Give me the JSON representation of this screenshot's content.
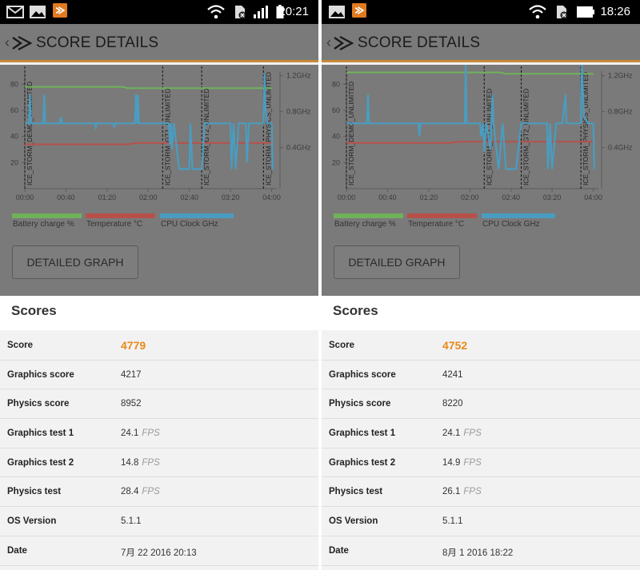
{
  "screens": [
    {
      "status": {
        "time": "20:21"
      },
      "header": {
        "title": "SCORE DETAILS"
      },
      "chart_data": {
        "type": "line",
        "x_ticks": [
          "00:00",
          "00:40",
          "01:20",
          "02:00",
          "02:40",
          "03:20",
          "04:00"
        ],
        "y_ticks": [
          "80",
          "60",
          "40",
          "20"
        ],
        "y2_ticks": [
          "1.2GHz",
          "0.8GHz",
          "0.4GHz"
        ],
        "phase_labels": [
          "ICE_STORM_DEMO_UNLIMITED",
          "ICE_STORM_GT1_UNLIMITED",
          "ICE_STORM_GT2_UNLIMITED",
          "ICE_STORM_PHYSICS_UNLIMITED"
        ],
        "phases_minutes": [
          0,
          134,
          172,
          232
        ],
        "series": [
          {
            "name": "Battery charge %",
            "color": "#6fb25a",
            "points": [
              [
                0,
                78
              ],
              [
                95,
                78
              ],
              [
                100,
                77
              ],
              [
                240,
                77
              ]
            ]
          },
          {
            "name": "Temperature °C",
            "color": "#b8504a",
            "points": [
              [
                0,
                34
              ],
              [
                100,
                34
              ],
              [
                110,
                35
              ],
              [
                240,
                35
              ]
            ]
          },
          {
            "name": "CPU Clock GHz",
            "color": "#4a9cc0",
            "points": [
              [
                0,
                50
              ],
              [
                4,
                50
              ],
              [
                5,
                72
              ],
              [
                6,
                50
              ],
              [
                18,
                50
              ],
              [
                19,
                72
              ],
              [
                20,
                50
              ],
              [
                34,
                50
              ],
              [
                35,
                55
              ],
              [
                36,
                50
              ],
              [
                68,
                50
              ],
              [
                69,
                47
              ],
              [
                70,
                50
              ],
              [
                86,
                50
              ],
              [
                87,
                47
              ],
              [
                88,
                50
              ],
              [
                107,
                50
              ],
              [
                108,
                72
              ],
              [
                109,
                50
              ],
              [
                110,
                72
              ],
              [
                111,
                50
              ],
              [
                140,
                50
              ],
              [
                141,
                34
              ],
              [
                142,
                50
              ],
              [
                143,
                30
              ],
              [
                145,
                50
              ],
              [
                150,
                15
              ],
              [
                160,
                15
              ],
              [
                161,
                50
              ],
              [
                163,
                15
              ],
              [
                172,
                15
              ],
              [
                175,
                50
              ],
              [
                200,
                50
              ],
              [
                201,
                15
              ],
              [
                203,
                50
              ],
              [
                205,
                15
              ],
              [
                208,
                50
              ],
              [
                215,
                50
              ],
              [
                216,
                20
              ],
              [
                218,
                50
              ],
              [
                232,
                50
              ],
              [
                233,
                88
              ],
              [
                234,
                60
              ],
              [
                236,
                50
              ],
              [
                240,
                50
              ],
              [
                241,
                15
              ]
            ]
          }
        ]
      },
      "legend": [
        "Battery charge %",
        "Temperature °C",
        "CPU Clock GHz"
      ],
      "detailed_button": "DETAILED GRAPH",
      "scores_title": "Scores",
      "rows": [
        {
          "label": "Score",
          "value": "4779",
          "unit": ""
        },
        {
          "label": "Graphics score",
          "value": "4217",
          "unit": ""
        },
        {
          "label": "Physics score",
          "value": "8952",
          "unit": ""
        },
        {
          "label": "Graphics test 1",
          "value": "24.1",
          "unit": "FPS"
        },
        {
          "label": "Graphics test 2",
          "value": "14.8",
          "unit": "FPS"
        },
        {
          "label": "Physics test",
          "value": "28.4",
          "unit": "FPS"
        },
        {
          "label": "OS Version",
          "value": "5.1.1",
          "unit": ""
        },
        {
          "label": "Date",
          "value": "7月 22 2016 20:13",
          "unit": ""
        }
      ]
    },
    {
      "status": {
        "time": "18:26"
      },
      "header": {
        "title": "SCORE DETAILS"
      },
      "chart_data": {
        "type": "line",
        "x_ticks": [
          "00:00",
          "00:40",
          "01:20",
          "02:00",
          "02:40",
          "03:20",
          "04:00"
        ],
        "y_ticks": [
          "80",
          "60",
          "40",
          "20"
        ],
        "y2_ticks": [
          "1.2GHz",
          "0.8GHz",
          "0.4GHz"
        ],
        "phase_labels": [
          "ICE_STORM_DEMO_UNLIMITED",
          "ICE_STORM_GT1_UNLIMITED",
          "ICE_STORM_GT2_UNLIMITED",
          "ICE_STORM_PHYSICS_UNLIMITED"
        ],
        "phases_minutes": [
          0,
          134,
          170,
          228
        ],
        "series": [
          {
            "name": "Battery charge %",
            "color": "#6fb25a",
            "points": [
              [
                0,
                89
              ],
              [
                150,
                89
              ],
              [
                155,
                88
              ],
              [
                240,
                88
              ]
            ]
          },
          {
            "name": "Temperature °C",
            "color": "#b8504a",
            "points": [
              [
                0,
                35
              ],
              [
                100,
                35
              ],
              [
                110,
                36
              ],
              [
                240,
                36
              ]
            ]
          },
          {
            "name": "CPU Clock GHz",
            "color": "#4a9cc0",
            "points": [
              [
                0,
                50
              ],
              [
                20,
                50
              ],
              [
                21,
                72
              ],
              [
                22,
                50
              ],
              [
                70,
                50
              ],
              [
                71,
                40
              ],
              [
                72,
                50
              ],
              [
                115,
                50
              ],
              [
                116,
                95
              ],
              [
                117,
                50
              ],
              [
                130,
                50
              ],
              [
                131,
                40
              ],
              [
                133,
                50
              ],
              [
                134,
                28
              ],
              [
                136,
                50
              ],
              [
                140,
                30
              ],
              [
                142,
                72
              ],
              [
                143,
                50
              ],
              [
                148,
                15
              ],
              [
                152,
                50
              ],
              [
                155,
                15
              ],
              [
                165,
                15
              ],
              [
                170,
                50
              ],
              [
                195,
                50
              ],
              [
                196,
                15
              ],
              [
                198,
                50
              ],
              [
                200,
                15
              ],
              [
                204,
                50
              ],
              [
                210,
                50
              ],
              [
                213,
                72
              ],
              [
                214,
                50
              ],
              [
                228,
                50
              ],
              [
                229,
                95
              ],
              [
                231,
                55
              ],
              [
                235,
                50
              ],
              [
                240,
                50
              ],
              [
                241,
                15
              ]
            ]
          }
        ]
      },
      "legend": [
        "Battery charge %",
        "Temperature °C",
        "CPU Clock GHz"
      ],
      "detailed_button": "DETAILED GRAPH",
      "scores_title": "Scores",
      "rows": [
        {
          "label": "Score",
          "value": "4752",
          "unit": ""
        },
        {
          "label": "Graphics score",
          "value": "4241",
          "unit": ""
        },
        {
          "label": "Physics score",
          "value": "8220",
          "unit": ""
        },
        {
          "label": "Graphics test 1",
          "value": "24.1",
          "unit": "FPS"
        },
        {
          "label": "Graphics test 2",
          "value": "14.9",
          "unit": "FPS"
        },
        {
          "label": "Physics test",
          "value": "26.1",
          "unit": "FPS"
        },
        {
          "label": "OS Version",
          "value": "5.1.1",
          "unit": ""
        },
        {
          "label": "Date",
          "value": "8月 1 2016 18:22",
          "unit": ""
        }
      ]
    }
  ],
  "icons": {
    "left_status": [
      "gmail-icon",
      "image-icon",
      "3dmark-icon",
      "wifi-icon",
      "no-sim-icon",
      "signal-icon",
      "battery-icon"
    ],
    "right_status": [
      "image-icon",
      "3dmark-icon",
      "wifi-icon",
      "no-sim-icon",
      "battery-icon"
    ]
  }
}
